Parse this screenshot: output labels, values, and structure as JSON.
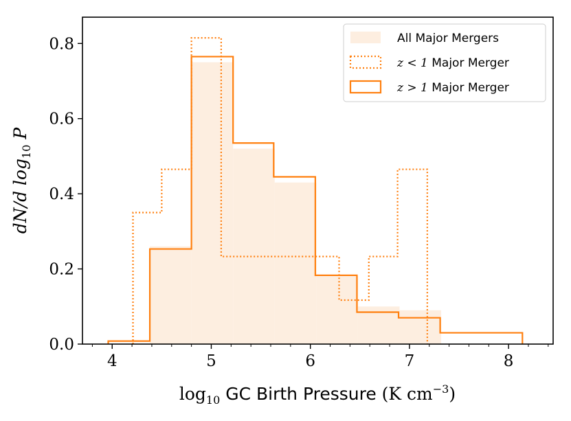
{
  "chart_data": {
    "type": "histogram",
    "xlabel_prefix": "log",
    "xlabel_sub": "10",
    "xlabel_main": " GC Birth Pressure ",
    "xlabel_units": "(K cm",
    "xlabel_units_sup": "−3",
    "xlabel_units_close": ")",
    "ylabel_main": "dN/d log",
    "ylabel_sub": "10",
    "ylabel_var": " P",
    "xlim": [
      3.7,
      8.45
    ],
    "ylim": [
      0,
      0.87
    ],
    "xticks": [
      4,
      5,
      6,
      7,
      8
    ],
    "xtick_labels": [
      "4",
      "5",
      "6",
      "7",
      "8"
    ],
    "x_minor_step": 0.2,
    "yticks": [
      0.0,
      0.2,
      0.4,
      0.6,
      0.8
    ],
    "ytick_labels": [
      "0.0",
      "0.2",
      "0.4",
      "0.6",
      "0.8"
    ],
    "series": [
      {
        "name": "All Major Mergers",
        "style": "filled",
        "color": "#fdeee0",
        "edges": [
          4.38,
          4.8,
          5.22,
          5.64,
          6.06,
          6.48,
          6.9,
          7.32
        ],
        "values": [
          0.26,
          0.75,
          0.52,
          0.43,
          0.18,
          0.1,
          0.09
        ]
      },
      {
        "name": "z < 1 Major Merger",
        "label_math": "z < 1",
        "label_rest": " Major Merger",
        "style": "dotted",
        "color": "#ff7f0e",
        "edges": [
          4.21,
          4.5,
          4.8,
          5.1,
          5.39,
          5.69,
          5.99,
          6.29,
          6.59,
          6.88,
          7.18
        ],
        "values": [
          0.35,
          0.465,
          0.815,
          0.233,
          0.233,
          0.233,
          0.233,
          0.117,
          0.233,
          0.465
        ]
      },
      {
        "name": "z > 1 Major Merger",
        "label_math": "z > 1",
        "label_rest": " Major Merger",
        "style": "solid",
        "color": "#ff7f0e",
        "edges": [
          3.96,
          4.38,
          4.8,
          5.22,
          5.63,
          6.05,
          6.47,
          6.89,
          7.31,
          8.14
        ],
        "values": [
          0.008,
          0.253,
          0.765,
          0.535,
          0.445,
          0.183,
          0.085,
          0.07,
          0.03
        ]
      }
    ],
    "legend_position": "upper right"
  }
}
